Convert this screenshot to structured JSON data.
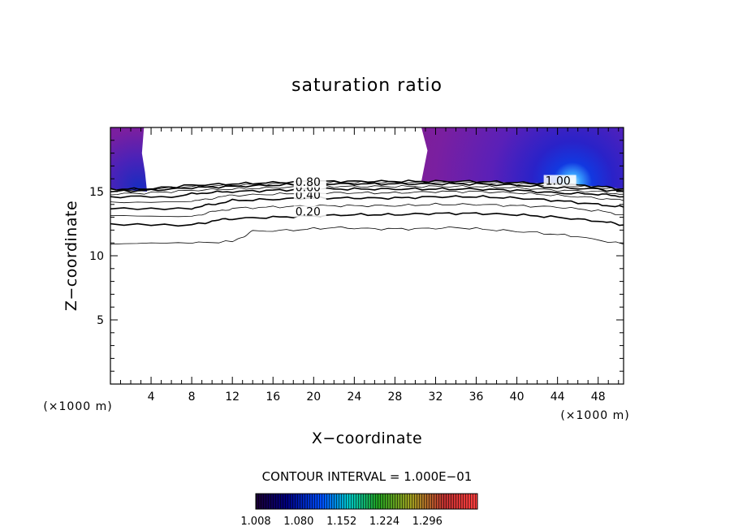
{
  "chart_data": {
    "type": "contour",
    "title": "saturation ratio",
    "xlabel": "X−coordinate",
    "ylabel": "Z−coordinate",
    "x_unit": "(×1000 m)",
    "y_unit": "(×1000 m)",
    "xlim": [
      0,
      50.5
    ],
    "ylim": [
      0,
      20
    ],
    "x_ticks": [
      4,
      8,
      12,
      16,
      20,
      24,
      28,
      32,
      36,
      40,
      44,
      48
    ],
    "y_ticks": [
      5,
      10,
      15
    ],
    "contour_interval_text": "CONTOUR INTERVAL = 1.000E−01",
    "colorbar": {
      "ticks": [
        "1.008",
        "1.080",
        "1.152",
        "1.224",
        "1.296"
      ],
      "range": [
        1.008,
        1.38
      ]
    },
    "contour_labels": [
      {
        "text": "0.20",
        "x": 18.2,
        "z": 13.2
      },
      {
        "text": "0.40",
        "x": 18.2,
        "z": 14.5
      },
      {
        "text": "0.60",
        "x": 18.2,
        "z": 15.1
      },
      {
        "text": "0.80",
        "x": 18.2,
        "z": 15.5
      },
      {
        "text": "1.00",
        "x": 42.8,
        "z": 15.6
      }
    ],
    "contours": [
      {
        "level": 0.1,
        "points": [
          [
            0,
            10.9
          ],
          [
            8,
            11.0
          ],
          [
            12,
            11.1
          ],
          [
            13,
            11.5
          ],
          [
            14,
            11.9
          ],
          [
            18,
            12.0
          ],
          [
            22,
            12.2
          ],
          [
            26,
            12.1
          ],
          [
            30,
            12.1
          ],
          [
            34,
            12.2
          ],
          [
            38,
            12.0
          ],
          [
            42,
            11.8
          ],
          [
            46,
            11.5
          ],
          [
            50.5,
            10.9
          ]
        ]
      },
      {
        "level": 0.2,
        "points": [
          [
            0,
            12.4
          ],
          [
            8,
            12.4
          ],
          [
            10,
            12.7
          ],
          [
            12,
            12.9
          ],
          [
            16,
            13.0
          ],
          [
            20,
            13.1
          ],
          [
            24,
            13.2
          ],
          [
            28,
            13.2
          ],
          [
            32,
            13.3
          ],
          [
            36,
            13.3
          ],
          [
            40,
            13.2
          ],
          [
            44,
            13.0
          ],
          [
            48,
            12.7
          ],
          [
            50.5,
            12.4
          ]
        ]
      },
      {
        "level": 0.3,
        "points": [
          [
            0,
            13.1
          ],
          [
            8,
            13.1
          ],
          [
            10,
            13.4
          ],
          [
            12,
            13.7
          ],
          [
            16,
            13.8
          ],
          [
            20,
            13.9
          ],
          [
            24,
            13.9
          ],
          [
            28,
            13.9
          ],
          [
            32,
            14.0
          ],
          [
            36,
            14.0
          ],
          [
            40,
            13.9
          ],
          [
            44,
            13.8
          ],
          [
            48,
            13.5
          ],
          [
            50.5,
            13.2
          ]
        ]
      },
      {
        "level": 0.4,
        "points": [
          [
            0,
            13.7
          ],
          [
            8,
            13.7
          ],
          [
            10,
            14.0
          ],
          [
            12,
            14.3
          ],
          [
            16,
            14.4
          ],
          [
            20,
            14.5
          ],
          [
            24,
            14.5
          ],
          [
            28,
            14.5
          ],
          [
            32,
            14.6
          ],
          [
            36,
            14.6
          ],
          [
            40,
            14.5
          ],
          [
            44,
            14.3
          ],
          [
            48,
            14.0
          ],
          [
            50.5,
            13.8
          ]
        ]
      },
      {
        "level": 0.5,
        "points": [
          [
            0,
            14.2
          ],
          [
            8,
            14.2
          ],
          [
            10,
            14.5
          ],
          [
            12,
            14.7
          ],
          [
            16,
            14.8
          ],
          [
            20,
            14.9
          ],
          [
            24,
            14.9
          ],
          [
            28,
            14.9
          ],
          [
            32,
            15.0
          ],
          [
            36,
            15.0
          ],
          [
            40,
            14.9
          ],
          [
            44,
            14.7
          ],
          [
            48,
            14.5
          ],
          [
            50.5,
            14.3
          ]
        ]
      },
      {
        "level": 0.6,
        "points": [
          [
            0,
            14.6
          ],
          [
            6,
            14.6
          ],
          [
            9,
            14.9
          ],
          [
            12,
            15.0
          ],
          [
            16,
            15.1
          ],
          [
            20,
            15.2
          ],
          [
            24,
            15.2
          ],
          [
            28,
            15.2
          ],
          [
            32,
            15.2
          ],
          [
            36,
            15.2
          ],
          [
            40,
            15.1
          ],
          [
            44,
            14.9
          ],
          [
            48,
            14.8
          ],
          [
            50.5,
            14.6
          ]
        ]
      },
      {
        "level": 0.7,
        "points": [
          [
            0,
            14.8
          ],
          [
            4,
            14.9
          ],
          [
            8,
            15.1
          ],
          [
            12,
            15.2
          ],
          [
            16,
            15.3
          ],
          [
            20,
            15.4
          ],
          [
            24,
            15.4
          ],
          [
            28,
            15.4
          ],
          [
            32,
            15.4
          ],
          [
            36,
            15.4
          ],
          [
            40,
            15.3
          ],
          [
            44,
            15.1
          ],
          [
            48,
            15.0
          ],
          [
            50.5,
            14.8
          ]
        ]
      },
      {
        "level": 0.8,
        "points": [
          [
            0,
            15.0
          ],
          [
            4,
            15.1
          ],
          [
            8,
            15.3
          ],
          [
            12,
            15.4
          ],
          [
            16,
            15.5
          ],
          [
            20,
            15.6
          ],
          [
            24,
            15.6
          ],
          [
            28,
            15.6
          ],
          [
            32,
            15.6
          ],
          [
            36,
            15.6
          ],
          [
            40,
            15.5
          ],
          [
            44,
            15.3
          ],
          [
            48,
            15.2
          ],
          [
            50.5,
            15.0
          ]
        ]
      },
      {
        "level": 0.9,
        "points": [
          [
            0,
            15.1
          ],
          [
            4,
            15.2
          ],
          [
            8,
            15.4
          ],
          [
            12,
            15.5
          ],
          [
            16,
            15.6
          ],
          [
            20,
            15.7
          ],
          [
            24,
            15.7
          ],
          [
            28,
            15.7
          ],
          [
            32,
            15.7
          ],
          [
            36,
            15.7
          ],
          [
            40,
            15.6
          ],
          [
            44,
            15.5
          ],
          [
            48,
            15.3
          ],
          [
            50.5,
            15.1
          ]
        ]
      },
      {
        "level": 1.0,
        "points": [
          [
            0,
            15.2
          ],
          [
            3.5,
            15.2
          ],
          [
            8,
            15.5
          ],
          [
            12,
            15.6
          ],
          [
            16,
            15.7
          ],
          [
            20,
            15.8
          ],
          [
            24,
            15.8
          ],
          [
            28,
            15.8
          ],
          [
            32,
            15.8
          ],
          [
            36,
            15.8
          ],
          [
            40,
            15.7
          ],
          [
            44,
            15.6
          ],
          [
            48,
            15.4
          ],
          [
            50.5,
            15.2
          ]
        ]
      }
    ],
    "supersaturated_regions": [
      {
        "points": [
          [
            0,
            20
          ],
          [
            3.3,
            20
          ],
          [
            3.1,
            18
          ],
          [
            3.4,
            16.5
          ],
          [
            3.6,
            15.0
          ],
          [
            0,
            15.2
          ]
        ],
        "max_x": 0,
        "max_z": 17
      },
      {
        "points": [
          [
            30.6,
            20
          ],
          [
            50.5,
            20
          ],
          [
            50.5,
            15.2
          ],
          [
            48,
            15.4
          ],
          [
            44,
            15.6
          ],
          [
            40,
            15.7
          ],
          [
            36,
            15.8
          ],
          [
            30.6,
            15.8
          ],
          [
            31.2,
            18.2
          ]
        ],
        "max_x": 45,
        "max_z": 15.7
      }
    ]
  },
  "colors": {
    "colorbar_stops": [
      "#1a0033",
      "#000080",
      "#0050ff",
      "#00c8c8",
      "#20a020",
      "#a0a020",
      "#c03030",
      "#ff4040"
    ],
    "region_top": "#7a1fa0",
    "region_low": "#1a2cc0",
    "hotspot": "#bff6ff"
  }
}
